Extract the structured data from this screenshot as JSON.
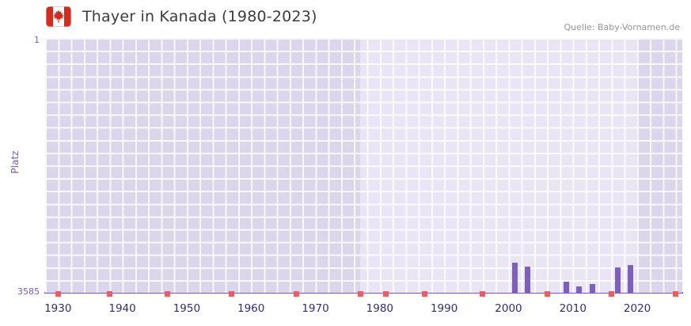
{
  "header": {
    "title": "Thayer in Kanada (1980-2023)",
    "source": "Quelle: Baby-Vornamen.de",
    "flag_icon": "canada-flag"
  },
  "chart_data": {
    "type": "bar",
    "title": "Thayer in Kanada (1980-2023)",
    "xlabel": "",
    "ylabel": "Platz",
    "y_axis": {
      "top_label": "1",
      "bottom_label": "3585",
      "min": 1,
      "max": 3585,
      "inverted": true
    },
    "x_ticks": [
      1930,
      1940,
      1950,
      1960,
      1970,
      1980,
      1990,
      2000,
      2010,
      2020
    ],
    "x_range": [
      1928,
      2027
    ],
    "highlight_band": {
      "from": 1977,
      "to": 2020
    },
    "grid": true,
    "legend": "none",
    "series": [
      {
        "name": "Platz",
        "points": [
          {
            "year": 2001,
            "rank": 3160
          },
          {
            "year": 2003,
            "rank": 3220
          },
          {
            "year": 2009,
            "rank": 3430
          },
          {
            "year": 2011,
            "rank": 3500
          },
          {
            "year": 2013,
            "rank": 3460
          },
          {
            "year": 2017,
            "rank": 3230
          },
          {
            "year": 2019,
            "rank": 3200
          }
        ]
      }
    ],
    "no_rank_marker_years": [
      1930,
      1938,
      1947,
      1957,
      1967,
      1977,
      1981,
      1987,
      1996,
      2006,
      2016,
      2026
    ],
    "colors": {
      "bar": "#7e5fbe",
      "marker": "#e66060",
      "axis": "#7a5bb5",
      "band": "#eae5f4",
      "plot_bg": "#dcd6ea",
      "x_label": "#2f2f6f",
      "flag_red": "#d52b1e"
    }
  }
}
